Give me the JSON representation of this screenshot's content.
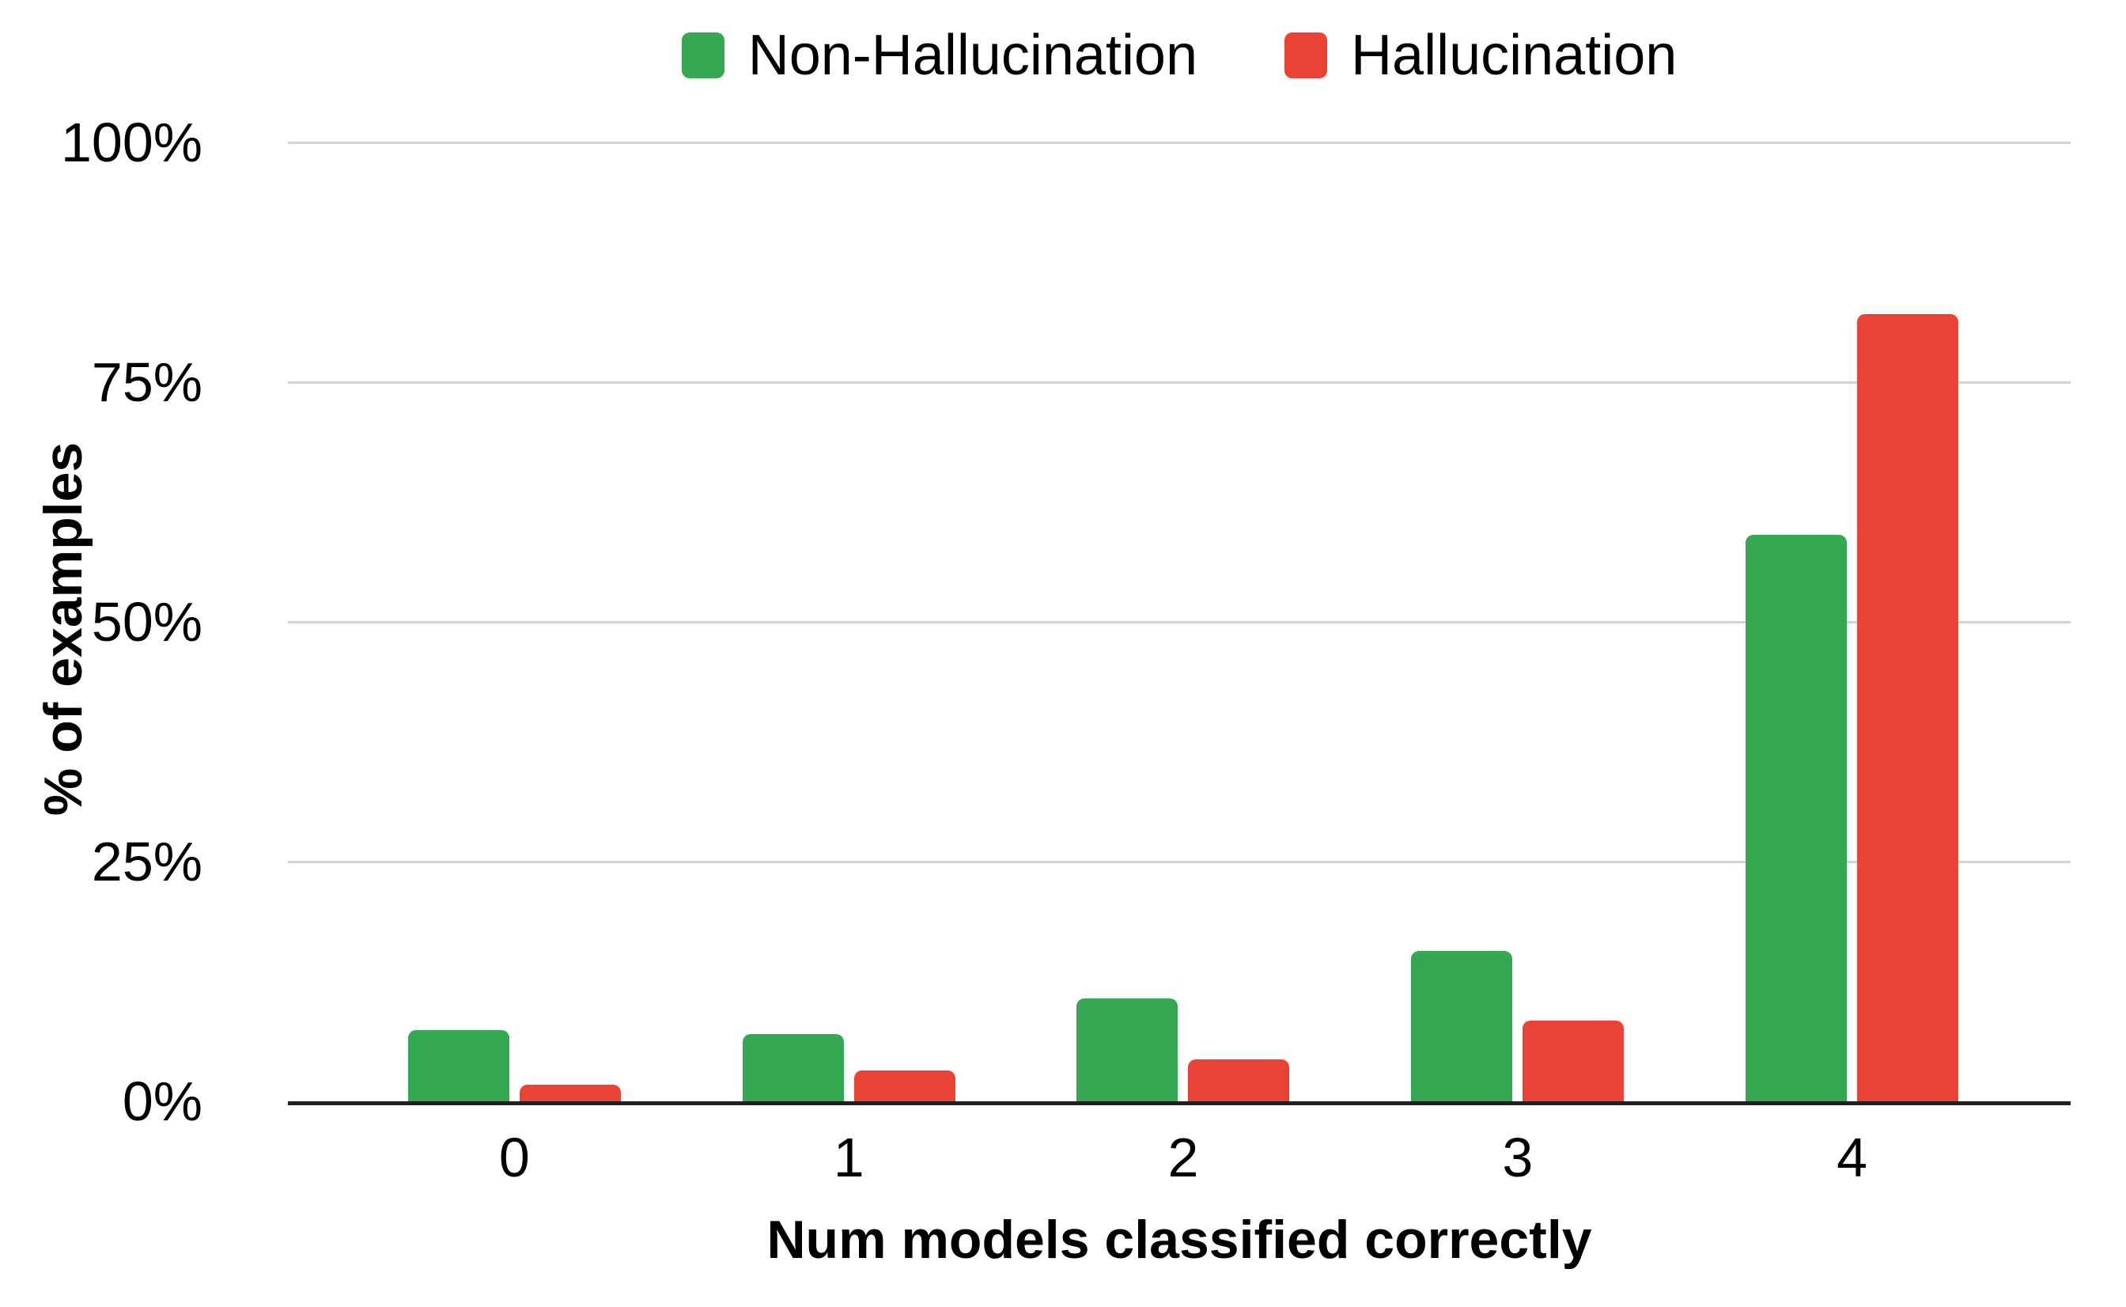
{
  "chart_data": {
    "type": "bar",
    "title": "",
    "categories": [
      "0",
      "1",
      "2",
      "3",
      "4"
    ],
    "series": [
      {
        "name": "Non-Hallucination",
        "color": "#34a853",
        "values": [
          7.4,
          7.0,
          10.7,
          15.7,
          59.1
        ]
      },
      {
        "name": "Hallucination",
        "color": "#ea4335",
        "values": [
          1.7,
          3.2,
          4.4,
          8.4,
          82.1
        ]
      }
    ],
    "xlabel": "Num models classified correctly",
    "ylabel": "% of examples",
    "ylim": [
      0,
      100
    ],
    "y_tick_step": 25,
    "y_tick_labels": [
      "0%",
      "25%",
      "50%",
      "75%",
      "100%"
    ],
    "grid": true,
    "legend_position": "top",
    "bar_corner": "rounded-top"
  },
  "colors": {
    "background": "#ffffff",
    "gridline": "#d3d3d3",
    "axis_line": "#212121",
    "text": "#000000"
  }
}
